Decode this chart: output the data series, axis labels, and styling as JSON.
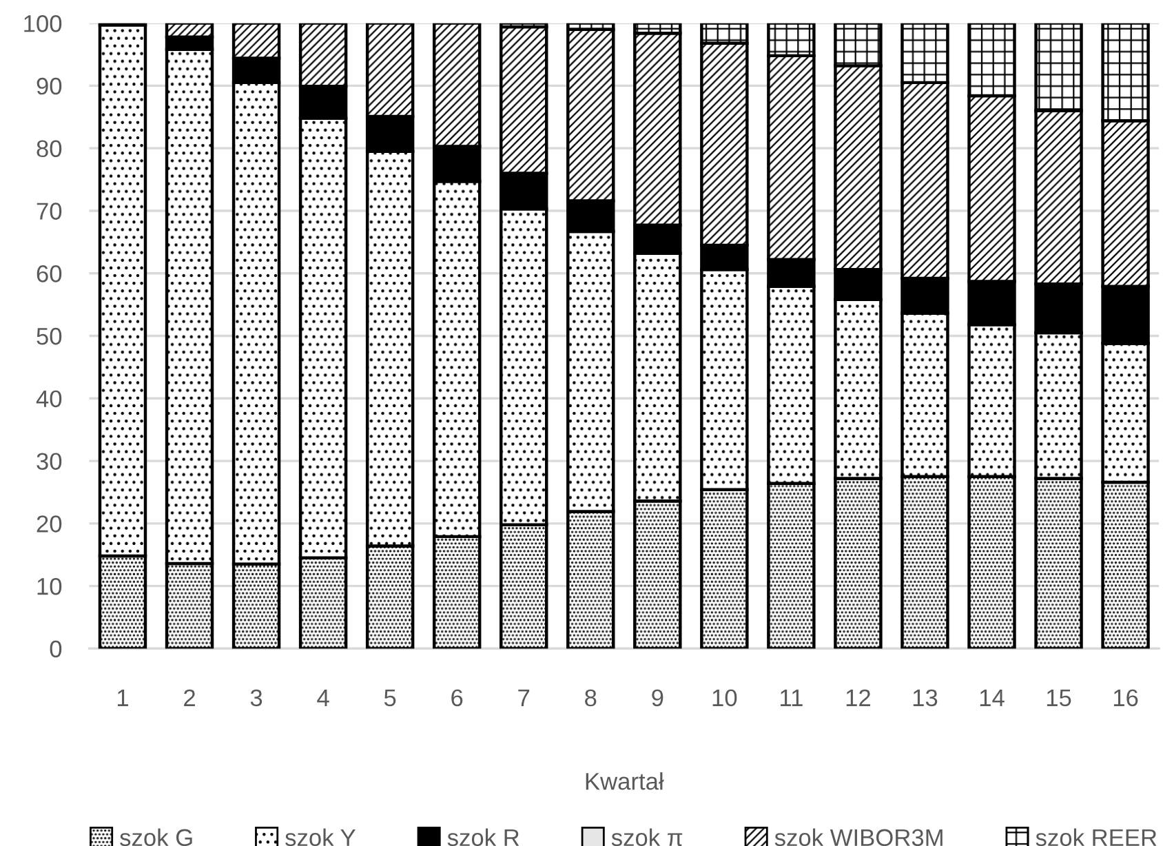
{
  "chart_data": {
    "type": "bar",
    "stacked": true,
    "xlabel": "Kwartał",
    "categories": [
      "1",
      "2",
      "3",
      "4",
      "5",
      "6",
      "7",
      "8",
      "9",
      "10",
      "11",
      "12",
      "13",
      "14",
      "15",
      "16"
    ],
    "series": [
      {
        "name": "szok G",
        "color": "#000000",
        "values": [
          14.8,
          13.6,
          13.5,
          14.5,
          16.4,
          17.9,
          19.8,
          21.9,
          23.6,
          25.4,
          26.4,
          27.2,
          27.5,
          27.5,
          27.2,
          26.6
        ]
      },
      {
        "name": "szok Y",
        "color": "#000000",
        "values": [
          84.9,
          82.2,
          77.0,
          70.3,
          63.1,
          56.8,
          50.5,
          44.8,
          39.6,
          35.2,
          31.5,
          28.6,
          26.1,
          24.3,
          23.3,
          22.2
        ]
      },
      {
        "name": "szok R",
        "color": "#000000",
        "values": [
          0.3,
          2.0,
          3.9,
          5.1,
          5.6,
          5.6,
          5.7,
          4.9,
          4.5,
          3.9,
          4.3,
          4.8,
          5.6,
          6.9,
          7.8,
          9.1
        ]
      },
      {
        "name": "szok π",
        "color": "#e7e6e6",
        "values": [
          0,
          0,
          0,
          0,
          0,
          0,
          0,
          0,
          0,
          0,
          0,
          0,
          0,
          0,
          0,
          0
        ]
      },
      {
        "name": "szok WIBOR3M",
        "color": "#000000",
        "values": [
          0,
          2.2,
          5.6,
          10.1,
          14.9,
          19.7,
          23.4,
          27.4,
          30.7,
          32.3,
          32.6,
          32.6,
          31.3,
          29.7,
          27.7,
          26.5
        ]
      },
      {
        "name": "szok REER",
        "color": "#000000",
        "values": [
          0,
          0,
          0,
          0,
          0,
          0,
          0.6,
          1.0,
          1.6,
          3.2,
          5.2,
          6.8,
          9.5,
          11.6,
          14.0,
          15.6
        ]
      }
    ],
    "ylim": [
      0,
      100
    ],
    "yticks": [
      0,
      10,
      20,
      30,
      40,
      50,
      60,
      70,
      80,
      90,
      100
    ],
    "grid": "y",
    "legend": "bottom"
  }
}
